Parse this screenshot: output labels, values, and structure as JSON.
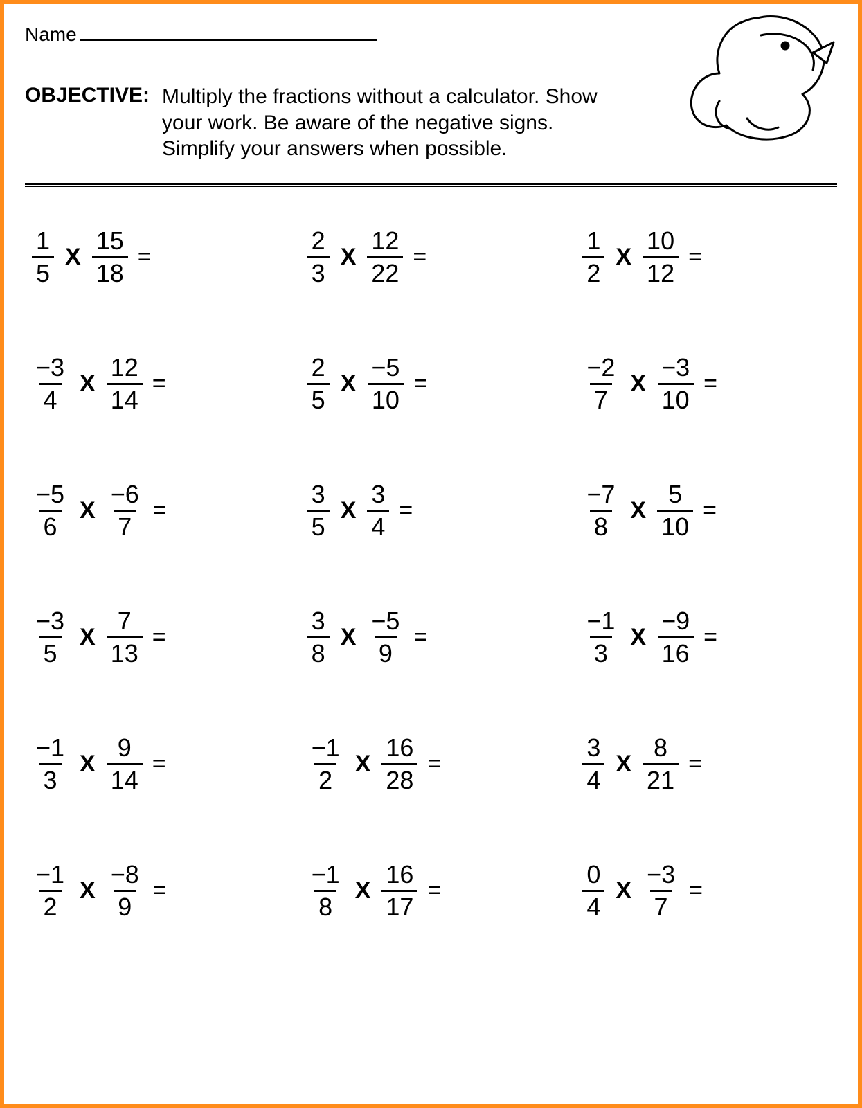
{
  "colors": {
    "border": "#ff8c1a",
    "text": "#000000",
    "background": "#ffffff"
  },
  "header": {
    "name_label": "Name",
    "objective_label": "OBJECTIVE:",
    "objective_text": "Multiply the fractions without a calculator. Show your work. Be aware of the negative signs. Simplify your answers when possible."
  },
  "layout": {
    "rows": 6,
    "cols": 3,
    "operator": "X",
    "equals": "="
  },
  "problems": [
    {
      "a_num": "1",
      "a_den": "5",
      "b_num": "15",
      "b_den": "18"
    },
    {
      "a_num": "2",
      "a_den": "3",
      "b_num": "12",
      "b_den": "22"
    },
    {
      "a_num": "1",
      "a_den": "2",
      "b_num": "10",
      "b_den": "12"
    },
    {
      "a_num": "−3",
      "a_den": "4",
      "b_num": "12",
      "b_den": "14"
    },
    {
      "a_num": "2",
      "a_den": "5",
      "b_num": "−5",
      "b_den": "10"
    },
    {
      "a_num": "−2",
      "a_den": "7",
      "b_num": "−3",
      "b_den": "10"
    },
    {
      "a_num": "−5",
      "a_den": "6",
      "b_num": "−6",
      "b_den": "7"
    },
    {
      "a_num": "3",
      "a_den": "5",
      "b_num": "3",
      "b_den": "4"
    },
    {
      "a_num": "−7",
      "a_den": "8",
      "b_num": "5",
      "b_den": "10"
    },
    {
      "a_num": "−3",
      "a_den": "5",
      "b_num": "7",
      "b_den": "13"
    },
    {
      "a_num": "3",
      "a_den": "8",
      "b_num": "−5",
      "b_den": "9"
    },
    {
      "a_num": "−1",
      "a_den": "3",
      "b_num": "−9",
      "b_den": "16"
    },
    {
      "a_num": "−1",
      "a_den": "3",
      "b_num": "9",
      "b_den": "14"
    },
    {
      "a_num": "−1",
      "a_den": "2",
      "b_num": "16",
      "b_den": "28"
    },
    {
      "a_num": "3",
      "a_den": "4",
      "b_num": "8",
      "b_den": "21"
    },
    {
      "a_num": "−1",
      "a_den": "2",
      "b_num": "−8",
      "b_den": "9"
    },
    {
      "a_num": "−1",
      "a_den": "8",
      "b_num": "16",
      "b_den": "17"
    },
    {
      "a_num": "0",
      "a_den": "4",
      "b_num": "−3",
      "b_den": "7"
    }
  ]
}
